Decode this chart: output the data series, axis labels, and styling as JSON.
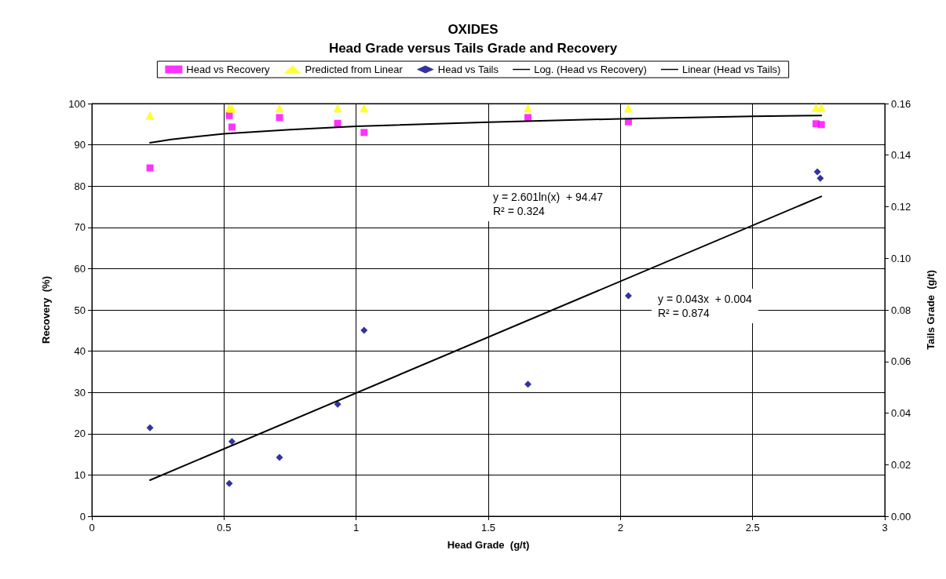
{
  "chart_data": {
    "type": "scatter",
    "title": "OXIDES",
    "subtitle": "Head Grade versus Tails Grade and Recovery",
    "xlabel": "Head Grade  (g/t)",
    "ylabel": "Recovery  (%)",
    "y2label": "Tails Grade  (g/t)",
    "xlim": [
      0,
      3
    ],
    "xticks": [
      0,
      0.5,
      1,
      1.5,
      2,
      2.5,
      3
    ],
    "ylim": [
      0,
      100
    ],
    "yticks": [
      0,
      10,
      20,
      30,
      40,
      50,
      60,
      70,
      80,
      90,
      100
    ],
    "y2lim": [
      0,
      0.16
    ],
    "y2ticks": [
      {
        "value": 0,
        "label": "0.00"
      },
      0.02,
      0.04,
      0.06,
      0.08,
      {
        "value": 0.1,
        "label": "0.10"
      },
      0.12,
      0.14,
      0.16
    ],
    "grid": true,
    "legend": "top",
    "series": [
      {
        "name": "Head vs Recovery",
        "marker": "square",
        "color": "#ff00ff",
        "x": [
          0.22,
          0.52,
          0.53,
          0.71,
          0.93,
          1.03,
          1.65,
          2.03,
          2.74,
          2.76
        ],
        "values": [
          84.4,
          97.1,
          94.3,
          96.6,
          95.2,
          93.0,
          96.6,
          95.6,
          95.1,
          94.9
        ]
      },
      {
        "name": "Predicted from Linear",
        "marker": "triangle",
        "color": "#ffff00",
        "x": [
          0.22,
          0.52,
          0.53,
          0.71,
          0.93,
          1.03,
          1.65,
          2.03,
          2.74,
          2.76
        ],
        "values": [
          97.1,
          98.9,
          98.8,
          98.9,
          98.9,
          98.9,
          98.9,
          98.9,
          99.0,
          99.0
        ]
      },
      {
        "name": "Head vs Tails",
        "marker": "diamond",
        "color": "#000080",
        "axis": "y2",
        "x": [
          0.22,
          0.52,
          0.53,
          0.71,
          0.93,
          1.03,
          1.65,
          2.03,
          2.745,
          2.756
        ],
        "values": [
          0.0343,
          0.0127,
          0.029,
          0.0228,
          0.0434,
          0.0721,
          0.0512,
          0.0855,
          0.1335,
          0.131
        ]
      },
      {
        "name": "Log. (Head vs Recovery)",
        "type": "line",
        "marker": "none",
        "color": "#000000",
        "x": [
          0.22,
          0.3,
          0.5,
          0.75,
          1,
          1.5,
          2,
          2.5,
          2.76
        ],
        "values": [
          90.5,
          91.3,
          92.7,
          93.7,
          94.5,
          95.5,
          96.3,
          96.9,
          97.1
        ]
      },
      {
        "name": "Linear (Head vs Tails)",
        "type": "line",
        "marker": "none",
        "color": "#000000",
        "axis": "y2",
        "x": [
          0.22,
          2.76
        ],
        "values": [
          0.014,
          0.124
        ]
      }
    ],
    "annotations": [
      "y = 2.601ln(x)  + 94.47\nR² = 0.324",
      "y = 0.043x  + 0.004\nR² = 0.874"
    ]
  }
}
